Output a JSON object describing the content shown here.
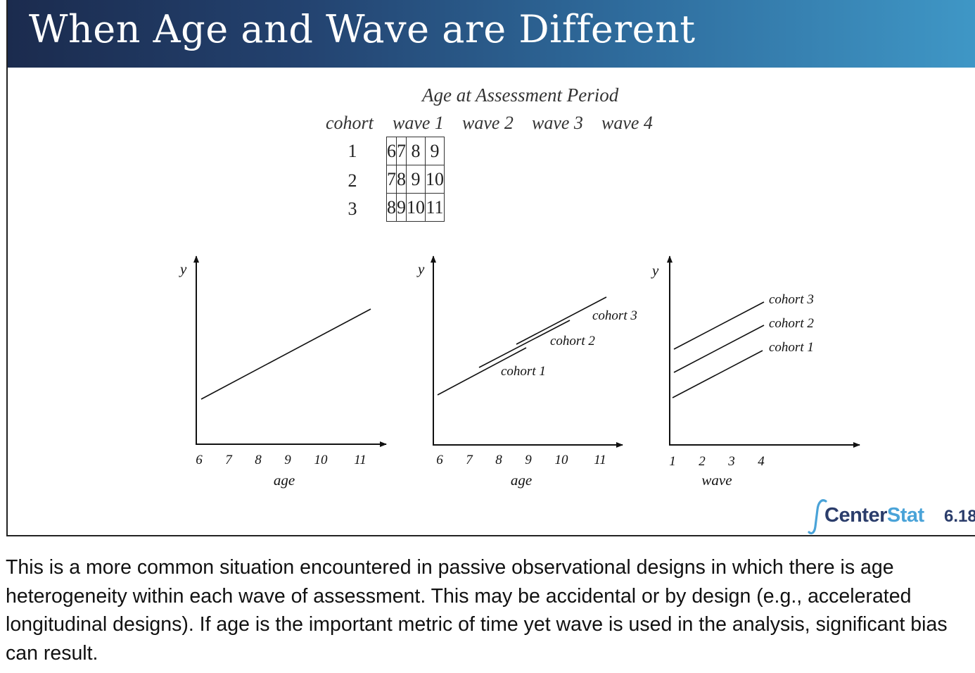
{
  "slide": {
    "title": "When Age and Wave are Different",
    "number": "6.18"
  },
  "table": {
    "caption": "Age at Assessment Period",
    "row_header": "cohort",
    "columns": [
      "wave 1",
      "wave 2",
      "wave 3",
      "wave 4"
    ],
    "rows": [
      {
        "cohort": "1",
        "ages": [
          "6",
          "7",
          "8",
          "9"
        ]
      },
      {
        "cohort": "2",
        "ages": [
          "7",
          "8",
          "9",
          "10"
        ]
      },
      {
        "cohort": "3",
        "ages": [
          "8",
          "9",
          "10",
          "11"
        ]
      }
    ]
  },
  "plots": {
    "y_label": "y",
    "plot1": {
      "x_label": "age",
      "ticks": [
        "6",
        "7",
        "8",
        "9",
        "10",
        "11"
      ]
    },
    "plot2": {
      "x_label": "age",
      "ticks": [
        "6",
        "7",
        "8",
        "9",
        "10",
        "11"
      ],
      "line_labels": [
        "cohort 3",
        "cohort 2",
        "cohort 1"
      ]
    },
    "plot3": {
      "x_label": "wave",
      "ticks": [
        "1",
        "2",
        "3",
        "4"
      ],
      "line_labels": [
        "cohort 3",
        "cohort 2",
        "cohort 1"
      ]
    }
  },
  "logo": {
    "name_part1": "Center",
    "name_part2": "Stat"
  },
  "notes": "This is a more common situation encountered in passive observational designs in which there is age heterogeneity within each wave of assessment. This may be accidental or by design (e.g., accelerated longitudinal designs). If age is the important metric of time yet wave is used in the analysis, significant bias can result.",
  "colors": {
    "title_gradient_start": "#1b2b4e",
    "title_gradient_end": "#3f97c6",
    "logo_dark": "#2b3d6b",
    "logo_accent": "#4aa3d8"
  }
}
